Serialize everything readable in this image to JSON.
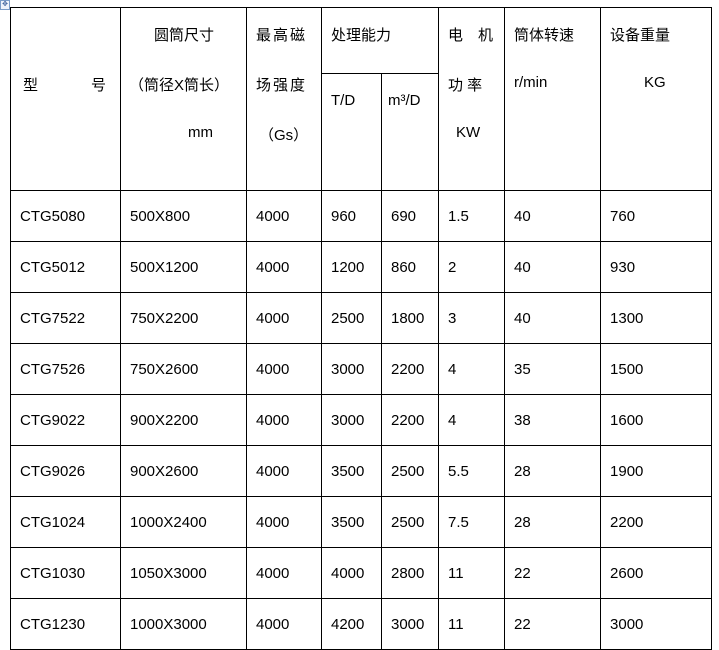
{
  "header": {
    "model": [
      "型",
      "号"
    ],
    "size": [
      "圆筒尺寸",
      "（筒径X筒长）",
      "mm"
    ],
    "field": [
      "最高磁",
      "场强度",
      "（Gs）"
    ],
    "capacity": "处理能力",
    "cap_td": "T/D",
    "cap_m3": "m³/D",
    "motor": [
      "电　机",
      "功 率",
      "KW"
    ],
    "speed": [
      "筒体转速",
      "r/min"
    ],
    "weight": [
      "设备重量",
      "KG"
    ]
  },
  "rows": [
    [
      "CTG5080",
      "500X800",
      "4000",
      "960",
      "690",
      "1.5",
      "40",
      "760"
    ],
    [
      "CTG5012",
      "500X1200",
      "4000",
      "1200",
      "860",
      "2",
      "40",
      "930"
    ],
    [
      "CTG7522",
      "750X2200",
      "4000",
      "2500",
      "1800",
      "3",
      "40",
      "1300"
    ],
    [
      "CTG7526",
      "750X2600",
      "4000",
      "3000",
      "2200",
      "4",
      "35",
      "1500"
    ],
    [
      "CTG9022",
      "900X2200",
      "4000",
      "3000",
      "2200",
      "4",
      "38",
      "1600"
    ],
    [
      "CTG9026",
      "900X2600",
      "4000",
      "3500",
      "2500",
      "5.5",
      "28",
      "1900"
    ],
    [
      "CTG1024",
      "1000X2400",
      "4000",
      "3500",
      "2500",
      "7.5",
      "28",
      "2200"
    ],
    [
      "CTG1030",
      "1050X3000",
      "4000",
      "4000",
      "2800",
      "11",
      "22",
      "2600"
    ],
    [
      "CTG1230",
      "1000X3000",
      "4000",
      "4200",
      "3000",
      "11",
      "22",
      "3000"
    ]
  ]
}
